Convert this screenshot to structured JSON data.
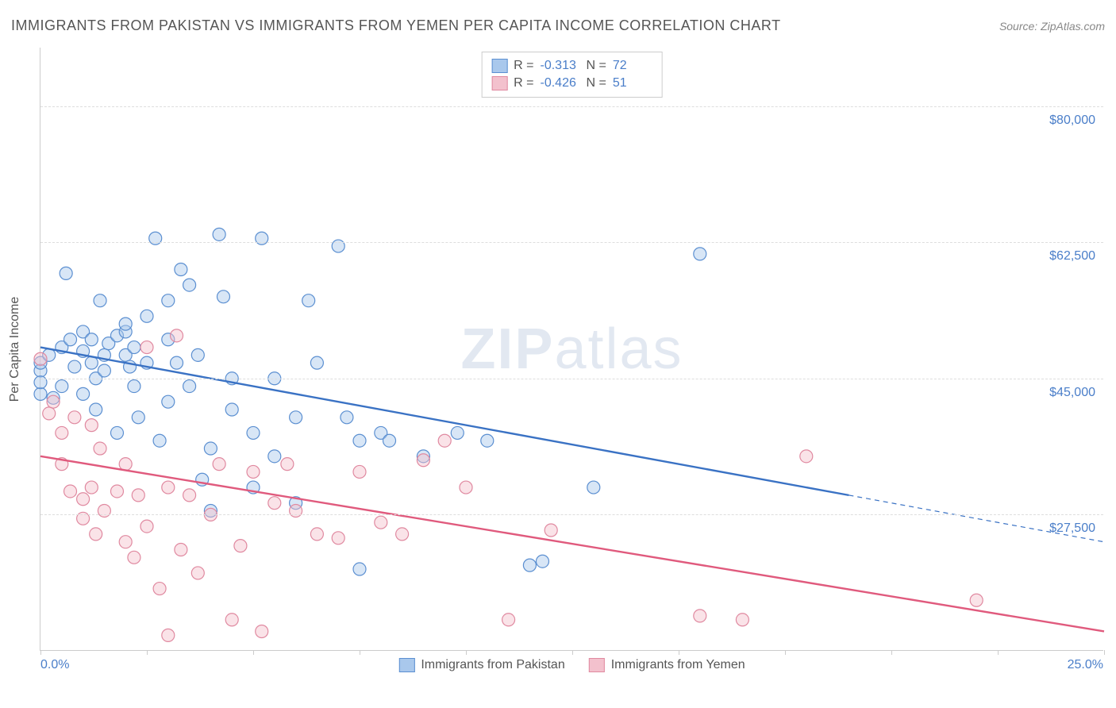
{
  "title": "IMMIGRANTS FROM PAKISTAN VS IMMIGRANTS FROM YEMEN PER CAPITA INCOME CORRELATION CHART",
  "source_prefix": "Source: ",
  "source_name": "ZipAtlas.com",
  "y_axis_title": "Per Capita Income",
  "watermark_a": "ZIP",
  "watermark_b": "atlas",
  "chart": {
    "type": "scatter",
    "background_color": "#ffffff",
    "grid_color": "#dddddd",
    "axis_color": "#cccccc",
    "text_color": "#555555",
    "value_color": "#4a7ec9",
    "xlim": [
      0,
      25
    ],
    "ylim": [
      10000,
      87500
    ],
    "y_ticks": [
      27500,
      45000,
      62500,
      80000
    ],
    "y_tick_labels": [
      "$27,500",
      "$45,000",
      "$62,500",
      "$80,000"
    ],
    "x_ticks": [
      0,
      2.5,
      5,
      7.5,
      10,
      12.5,
      15,
      17.5,
      20,
      22.5,
      25
    ],
    "x_start_label": "0.0%",
    "x_end_label": "25.0%",
    "marker_radius": 8,
    "marker_fill_opacity": 0.45,
    "marker_stroke_width": 1.2,
    "line_width": 2.4
  },
  "series": [
    {
      "name": "Immigrants from Pakistan",
      "color_fill": "#a9c8ec",
      "color_stroke": "#5b8fd1",
      "line_color": "#3a72c4",
      "R": "-0.313",
      "N": "72",
      "trend": {
        "x1": 0,
        "y1": 49000,
        "x2": 19,
        "y2": 30000,
        "x2_dash": 25,
        "y2_dash": 24000
      },
      "points": [
        [
          0,
          46000
        ],
        [
          0,
          47000
        ],
        [
          0,
          43000
        ],
        [
          0,
          44500
        ],
        [
          0.2,
          48000
        ],
        [
          0.3,
          42500
        ],
        [
          0.5,
          44000
        ],
        [
          0.5,
          49000
        ],
        [
          0.6,
          58500
        ],
        [
          0.7,
          50000
        ],
        [
          0.8,
          46500
        ],
        [
          1,
          48500
        ],
        [
          1,
          51000
        ],
        [
          1,
          43000
        ],
        [
          1.2,
          47000
        ],
        [
          1.2,
          50000
        ],
        [
          1.3,
          45000
        ],
        [
          1.3,
          41000
        ],
        [
          1.4,
          55000
        ],
        [
          1.5,
          48000
        ],
        [
          1.5,
          46000
        ],
        [
          1.6,
          49500
        ],
        [
          1.8,
          50500
        ],
        [
          1.8,
          38000
        ],
        [
          2,
          51000
        ],
        [
          2,
          52000
        ],
        [
          2,
          48000
        ],
        [
          2.1,
          46500
        ],
        [
          2.2,
          49000
        ],
        [
          2.2,
          44000
        ],
        [
          2.3,
          40000
        ],
        [
          2.5,
          53000
        ],
        [
          2.5,
          47000
        ],
        [
          2.7,
          63000
        ],
        [
          2.8,
          37000
        ],
        [
          3,
          42000
        ],
        [
          3,
          50000
        ],
        [
          3,
          55000
        ],
        [
          3.2,
          47000
        ],
        [
          3.3,
          59000
        ],
        [
          3.5,
          44000
        ],
        [
          3.5,
          57000
        ],
        [
          3.7,
          48000
        ],
        [
          3.8,
          32000
        ],
        [
          4,
          36000
        ],
        [
          4,
          28000
        ],
        [
          4.2,
          63500
        ],
        [
          4.3,
          55500
        ],
        [
          4.5,
          45000
        ],
        [
          4.5,
          41000
        ],
        [
          5,
          38000
        ],
        [
          5,
          31000
        ],
        [
          5.2,
          63000
        ],
        [
          5.5,
          45000
        ],
        [
          5.5,
          35000
        ],
        [
          6,
          40000
        ],
        [
          6,
          29000
        ],
        [
          6.3,
          55000
        ],
        [
          6.5,
          47000
        ],
        [
          7,
          62000
        ],
        [
          7.2,
          40000
        ],
        [
          7.5,
          37000
        ],
        [
          7.5,
          20500
        ],
        [
          8,
          38000
        ],
        [
          8.2,
          37000
        ],
        [
          9,
          35000
        ],
        [
          9.8,
          38000
        ],
        [
          10.5,
          37000
        ],
        [
          11.5,
          21000
        ],
        [
          11.8,
          21500
        ],
        [
          13,
          31000
        ],
        [
          15.5,
          61000
        ]
      ]
    },
    {
      "name": "Immigrants from Yemen",
      "color_fill": "#f3c1cd",
      "color_stroke": "#e089a0",
      "line_color": "#e05a7d",
      "R": "-0.426",
      "N": "51",
      "trend": {
        "x1": 0,
        "y1": 35000,
        "x2": 25,
        "y2": 12500
      },
      "points": [
        [
          0,
          47500
        ],
        [
          0.2,
          40500
        ],
        [
          0.3,
          42000
        ],
        [
          0.5,
          38000
        ],
        [
          0.5,
          34000
        ],
        [
          0.7,
          30500
        ],
        [
          0.8,
          40000
        ],
        [
          1,
          29500
        ],
        [
          1,
          27000
        ],
        [
          1.2,
          39000
        ],
        [
          1.2,
          31000
        ],
        [
          1.3,
          25000
        ],
        [
          1.4,
          36000
        ],
        [
          1.5,
          28000
        ],
        [
          1.8,
          30500
        ],
        [
          2,
          24000
        ],
        [
          2,
          34000
        ],
        [
          2.2,
          22000
        ],
        [
          2.3,
          30000
        ],
        [
          2.5,
          49000
        ],
        [
          2.5,
          26000
        ],
        [
          2.8,
          18000
        ],
        [
          3,
          31000
        ],
        [
          3,
          12000
        ],
        [
          3.2,
          50500
        ],
        [
          3.3,
          23000
        ],
        [
          3.5,
          30000
        ],
        [
          3.7,
          20000
        ],
        [
          4,
          27500
        ],
        [
          4.2,
          34000
        ],
        [
          4.5,
          14000
        ],
        [
          4.7,
          23500
        ],
        [
          5,
          33000
        ],
        [
          5.2,
          12500
        ],
        [
          5.5,
          29000
        ],
        [
          5.8,
          34000
        ],
        [
          6,
          28000
        ],
        [
          6.5,
          25000
        ],
        [
          7,
          24500
        ],
        [
          7.5,
          33000
        ],
        [
          8,
          26500
        ],
        [
          8.5,
          25000
        ],
        [
          9,
          34500
        ],
        [
          9.5,
          37000
        ],
        [
          10,
          31000
        ],
        [
          11,
          14000
        ],
        [
          12,
          25500
        ],
        [
          15.5,
          14500
        ],
        [
          16.5,
          14000
        ],
        [
          18,
          35000
        ],
        [
          22,
          16500
        ]
      ]
    }
  ],
  "legend_top_labels": {
    "R": "R =",
    "N": "N ="
  },
  "legend_bottom": [
    "Immigrants from Pakistan",
    "Immigrants from Yemen"
  ]
}
